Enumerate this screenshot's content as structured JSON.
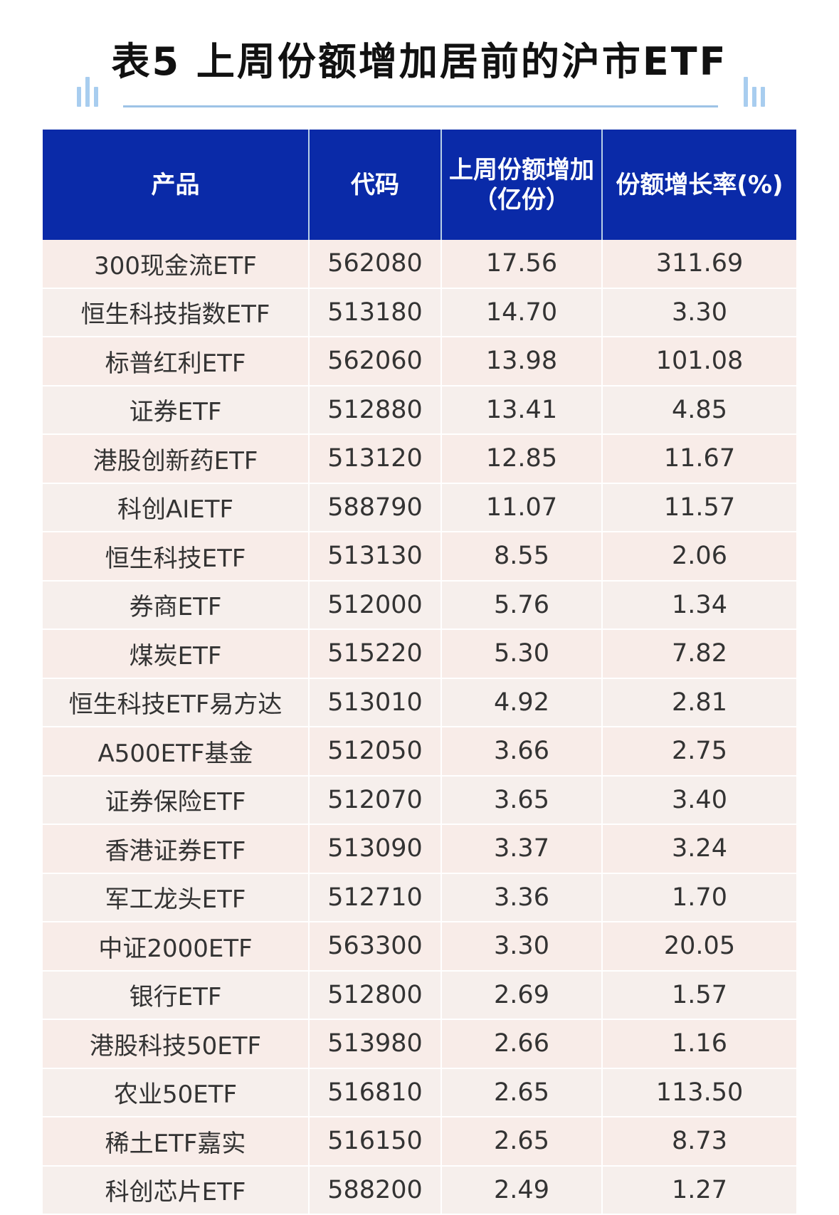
{
  "title": "表5  上周份额增加居前的沪市ETF",
  "table": {
    "headers": [
      "产品",
      "代码",
      "上周份额增加（亿份）",
      "份额增长率(%)"
    ],
    "rows": [
      [
        "300现金流ETF",
        "562080",
        "17.56",
        "311.69"
      ],
      [
        "恒生科技指数ETF",
        "513180",
        "14.70",
        "3.30"
      ],
      [
        "标普红利ETF",
        "562060",
        "13.98",
        "101.08"
      ],
      [
        "证券ETF",
        "512880",
        "13.41",
        "4.85"
      ],
      [
        "港股创新药ETF",
        "513120",
        "12.85",
        "11.67"
      ],
      [
        "科创AIETF",
        "588790",
        "11.07",
        "11.57"
      ],
      [
        "恒生科技ETF",
        "513130",
        "8.55",
        "2.06"
      ],
      [
        "券商ETF",
        "512000",
        "5.76",
        "1.34"
      ],
      [
        "煤炭ETF",
        "515220",
        "5.30",
        "7.82"
      ],
      [
        "恒生科技ETF易方达",
        "513010",
        "4.92",
        "2.81"
      ],
      [
        "A500ETF基金",
        "512050",
        "3.66",
        "2.75"
      ],
      [
        "证券保险ETF",
        "512070",
        "3.65",
        "3.40"
      ],
      [
        "香港证券ETF",
        "513090",
        "3.37",
        "3.24"
      ],
      [
        "军工龙头ETF",
        "512710",
        "3.36",
        "1.70"
      ],
      [
        "中证2000ETF",
        "563300",
        "3.30",
        "20.05"
      ],
      [
        "银行ETF",
        "512800",
        "2.69",
        "1.57"
      ],
      [
        "港股科技50ETF",
        "513980",
        "2.66",
        "1.16"
      ],
      [
        "农业50ETF",
        "516810",
        "2.65",
        "113.50"
      ],
      [
        "稀土ETF嘉实",
        "516150",
        "2.65",
        "8.73"
      ],
      [
        "科创芯片ETF",
        "588200",
        "2.49",
        "1.27"
      ]
    ]
  },
  "colors": {
    "header_bg": "#0a2aa8",
    "row_bg": "#f8ece8",
    "accent": "#9dc3e6"
  }
}
